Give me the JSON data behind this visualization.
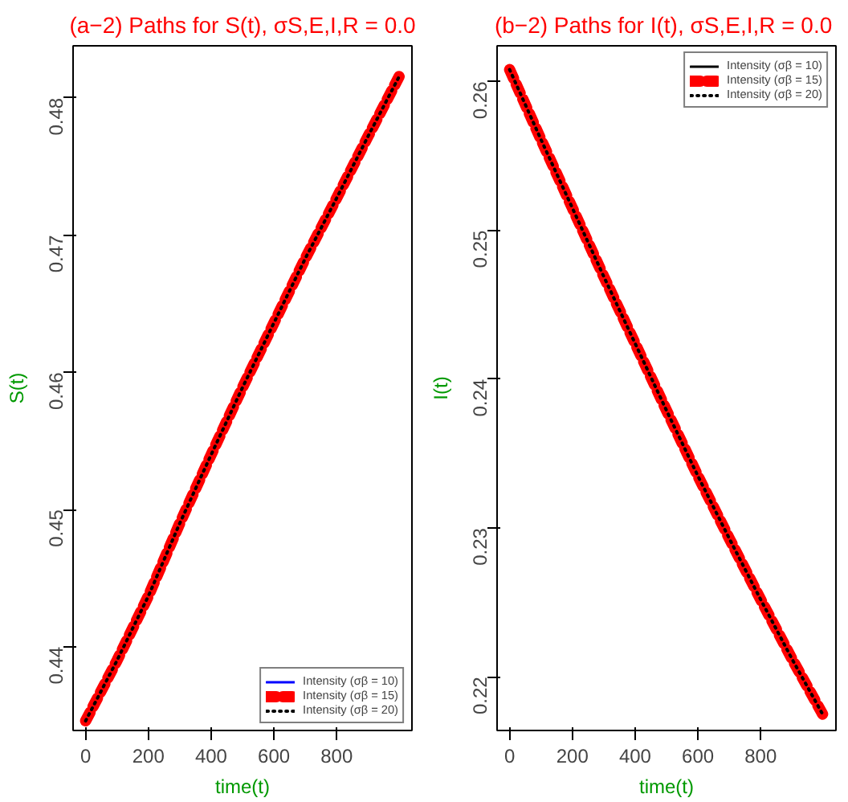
{
  "chart_data": [
    {
      "type": "line",
      "title": "(a−2) Paths for S(t), σS,E,I,R = 0.0",
      "xlabel": "time(t)",
      "ylabel": "S(t)",
      "x": [
        0,
        100,
        200,
        300,
        400,
        500,
        600,
        700,
        800,
        900,
        1000
      ],
      "series": [
        {
          "name": "Intensity (σβ = 10)",
          "color": "#0000ff",
          "line_style": "solid",
          "values": [
            null,
            null,
            null,
            null,
            null,
            null,
            null,
            null,
            null,
            null,
            null
          ]
        },
        {
          "name": "Intensity (σβ = 15)",
          "color": "#ff0000",
          "line_style": "dashed",
          "values": [
            0.4346,
            0.439,
            0.4437,
            0.449,
            0.454,
            0.4589,
            0.4636,
            0.4683,
            0.4727,
            0.4772,
            0.4816
          ]
        },
        {
          "name": "Intensity (σβ = 20)",
          "color": "#000000",
          "line_style": "dotted",
          "values": [
            0.4346,
            0.439,
            0.4437,
            0.449,
            0.454,
            0.4589,
            0.4636,
            0.4683,
            0.4727,
            0.4772,
            0.4816
          ]
        }
      ],
      "xlim": [
        -40,
        1040
      ],
      "xticks": [
        0,
        200,
        400,
        600,
        800
      ],
      "ylim": [
        0.4339,
        0.4838
      ],
      "yticks": [
        0.44,
        0.45,
        0.46,
        0.47,
        0.48
      ],
      "legend": "bottom right",
      "grid": false,
      "marker": "none"
    },
    {
      "type": "line",
      "title": "(b−2)  Paths for I(t), σS,E,I,R = 0.0",
      "xlabel": "time(t)",
      "ylabel": "I(t)",
      "x": [
        0,
        100,
        200,
        300,
        400,
        500,
        600,
        700,
        800,
        900,
        1000
      ],
      "series": [
        {
          "name": "Intensity (σβ = 10)",
          "color": "#000000",
          "line_style": "solid",
          "values": [
            null,
            null,
            null,
            null,
            null,
            null,
            null,
            null,
            null,
            null,
            null
          ]
        },
        {
          "name": "Intensity (σβ = 15)",
          "color": "#ff0000",
          "line_style": "dashed",
          "values": [
            0.2608,
            0.2561,
            0.2515,
            0.2469,
            0.2424,
            0.2379,
            0.2335,
            0.2293,
            0.2252,
            0.2212,
            0.2174
          ]
        },
        {
          "name": "Intensity (σβ = 20)",
          "color": "#000000",
          "line_style": "dotted",
          "values": [
            0.2608,
            0.2561,
            0.2515,
            0.2469,
            0.2424,
            0.2379,
            0.2335,
            0.2293,
            0.2252,
            0.2212,
            0.2174
          ]
        }
      ],
      "xlim": [
        -40,
        1040
      ],
      "xticks": [
        0,
        200,
        400,
        600,
        800
      ],
      "ylim": [
        0.2164,
        0.2624
      ],
      "yticks": [
        0.22,
        0.23,
        0.24,
        0.25,
        0.26
      ],
      "legend": "top right",
      "grid": false,
      "marker": "none"
    }
  ]
}
